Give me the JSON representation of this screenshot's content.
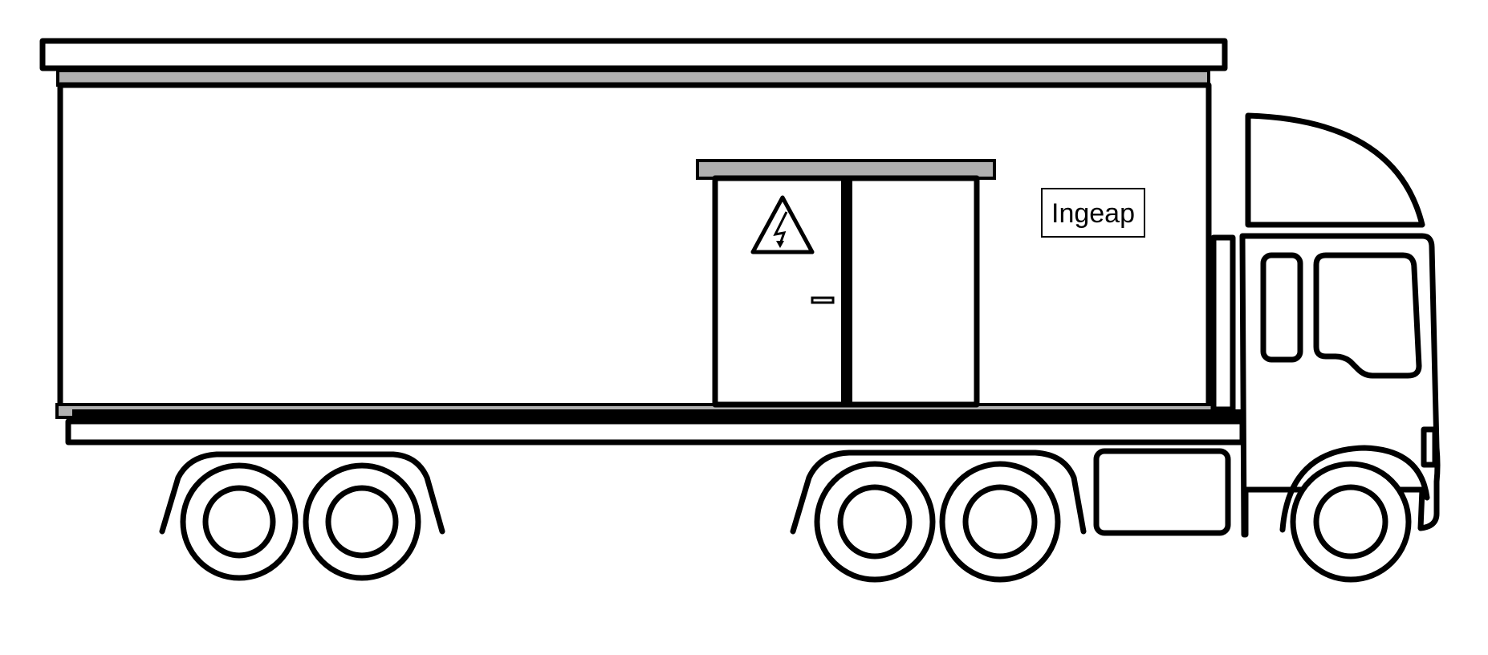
{
  "diagram": {
    "brand_label": "Ingeap",
    "warning_sign": "high-voltage-warning-icon",
    "colors": {
      "outline": "#000000",
      "body": "#ffffff",
      "trim": "#b0b0b0"
    }
  }
}
